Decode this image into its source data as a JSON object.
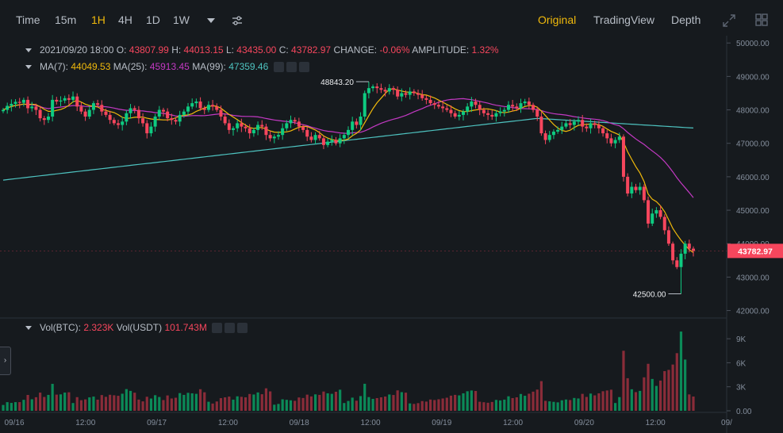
{
  "timeframes": [
    {
      "label": "Time",
      "active": false
    },
    {
      "label": "15m",
      "active": false
    },
    {
      "label": "1H",
      "active": true
    },
    {
      "label": "4H",
      "active": false
    },
    {
      "label": "1D",
      "active": false
    },
    {
      "label": "1W",
      "active": false
    }
  ],
  "views": [
    {
      "label": "Original",
      "active": true
    },
    {
      "label": "TradingView",
      "active": false
    },
    {
      "label": "Depth",
      "active": false
    }
  ],
  "ohlc": {
    "date": "2021/09/20 18:00",
    "o_label": "O:",
    "o": "43807.99",
    "h_label": "H:",
    "h": "44013.15",
    "l_label": "L:",
    "l": "43435.00",
    "c_label": "C:",
    "c": "43782.97",
    "change_label": "CHANGE:",
    "change": "-0.06%",
    "amp_label": "AMPLITUDE:",
    "amp": "1.32%"
  },
  "ma": {
    "ma7_label": "MA(7):",
    "ma7": "44049.53",
    "ma25_label": "MA(25):",
    "ma25": "45913.45",
    "ma99_label": "MA(99):",
    "ma99": "47359.46"
  },
  "vol": {
    "btc_label": "Vol(BTC):",
    "btc": "2.323K",
    "usdt_label": "Vol(USDT)",
    "usdt": "101.743M"
  },
  "chart_data": {
    "type": "candlestick",
    "price_axis_ticks": [
      "50000.00",
      "49000.00",
      "48000.00",
      "47000.00",
      "46000.00",
      "45000.00",
      "44000.00",
      "43000.00",
      "42000.00"
    ],
    "price_range": [
      41800,
      50100
    ],
    "volume_axis_ticks": [
      "9K",
      "6K",
      "3K",
      "0.00"
    ],
    "volume_range": [
      0,
      10500
    ],
    "x_ticks": [
      "09/16",
      "12:00",
      "09/17",
      "12:00",
      "09/18",
      "12:00",
      "09/19",
      "12:00",
      "09/20",
      "12:00",
      "09/"
    ],
    "current_price": "43782.97",
    "annotations": [
      {
        "label": "48843.20",
        "price": 48843.2
      },
      {
        "label": "42500.00",
        "price": 42500.0
      }
    ],
    "colors": {
      "up": "#0ecb81",
      "down": "#f6465d",
      "ma7": "#f0b90b",
      "ma25": "#c339c3",
      "ma99": "#4ec3c0",
      "vol_up": "#0b8a58",
      "vol_down": "#8a2c39"
    },
    "series": {
      "close": [
        48000,
        48120,
        48180,
        48240,
        48210,
        48300,
        48050,
        48100,
        48000,
        47750,
        47700,
        47800,
        48300,
        48250,
        48280,
        48350,
        48300,
        48400,
        48100,
        47950,
        47800,
        48000,
        48200,
        48150,
        47950,
        47850,
        47700,
        47600,
        47550,
        47650,
        47900,
        48050,
        48000,
        47750,
        47600,
        47300,
        47500,
        47800,
        48000,
        47950,
        47750,
        47700,
        47650,
        47850,
        47950,
        48100,
        48200,
        48250,
        48050,
        48000,
        48150,
        48100,
        48000,
        47800,
        47600,
        47400,
        47450,
        47600,
        47500,
        47450,
        47300,
        47400,
        47550,
        47500,
        47250,
        47150,
        47200,
        47250,
        47450,
        47600,
        47700,
        47650,
        47500,
        47400,
        47200,
        47100,
        47250,
        47150,
        46950,
        47050,
        47100,
        47000,
        47150,
        47250,
        47400,
        47650,
        47550,
        47800,
        48500,
        48650,
        48700,
        48650,
        48600,
        48550,
        48650,
        48600,
        48400,
        48500,
        48450,
        48550,
        48500,
        48450,
        48350,
        48300,
        48200,
        48150,
        48100,
        48050,
        48000,
        47900,
        47800,
        47850,
        47950,
        48100,
        48250,
        48150,
        48000,
        47900,
        47850,
        47800,
        47900,
        47950,
        48000,
        48150,
        48100,
        48050,
        48200,
        48250,
        48150,
        48000,
        47800,
        47300,
        47100,
        47250,
        47350,
        47400,
        47500,
        47600,
        47550,
        47650,
        47700,
        47500,
        47450,
        47600,
        47550,
        47450,
        47300,
        47150,
        47000,
        47100,
        47200,
        46000,
        45500,
        45700,
        45600,
        45700,
        45300,
        44600,
        44900,
        45000,
        44800,
        44400,
        44000,
        43500,
        43300,
        43700,
        44000,
        43850,
        43782
      ]
    }
  }
}
